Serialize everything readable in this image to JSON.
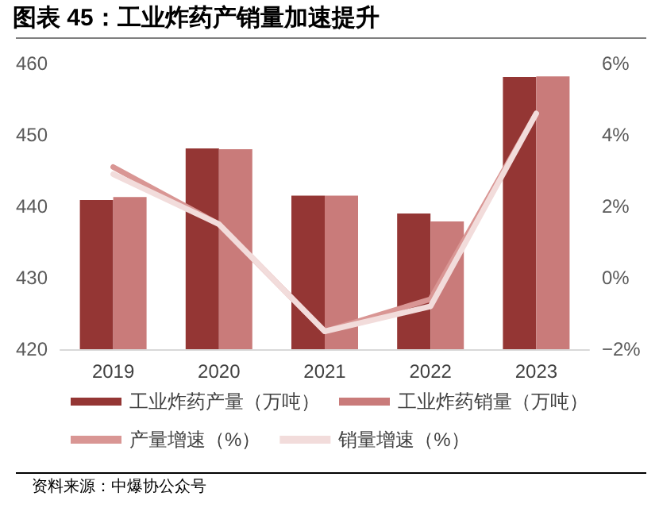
{
  "chart_data": {
    "type": "bar",
    "title": "图表 45：工业炸药产销量加速提升",
    "categories": [
      "2019",
      "2020",
      "2021",
      "2022",
      "2023"
    ],
    "series": [
      {
        "name": "工业炸药产量（万吨）",
        "color": "#943634",
        "values": [
          440.9,
          448.1,
          441.5,
          439.0,
          458.1
        ]
      },
      {
        "name": "工业炸药销量（万吨）",
        "color": "#c97b7a",
        "values": [
          441.3,
          448.0,
          441.5,
          437.9,
          458.2
        ]
      },
      {
        "name": "产量增速（%）",
        "type": "line",
        "axis": "y2",
        "color": "#d99694",
        "values": [
          3.1,
          1.5,
          -1.5,
          -0.6,
          4.6
        ]
      },
      {
        "name": "销量增速（%）",
        "type": "line",
        "axis": "y2",
        "color": "#f2dcdb",
        "values": [
          2.9,
          1.5,
          -1.5,
          -0.8,
          4.6
        ]
      }
    ],
    "ylim": [
      420,
      460
    ],
    "yticks": [
      420,
      430,
      440,
      450,
      460
    ],
    "y2lim": [
      -2,
      6
    ],
    "y2ticks": [
      {
        "value": -2,
        "label": "−2%"
      },
      {
        "value": 0,
        "label": "0%"
      },
      {
        "value": 2,
        "label": "2%"
      },
      {
        "value": 4,
        "label": "4%"
      },
      {
        "value": 6,
        "label": "6%"
      }
    ],
    "grid": false,
    "legend": "bottom",
    "marker": "none",
    "line_style": "solid",
    "annotations": [
      "资料来源：中爆协公众号"
    ]
  }
}
